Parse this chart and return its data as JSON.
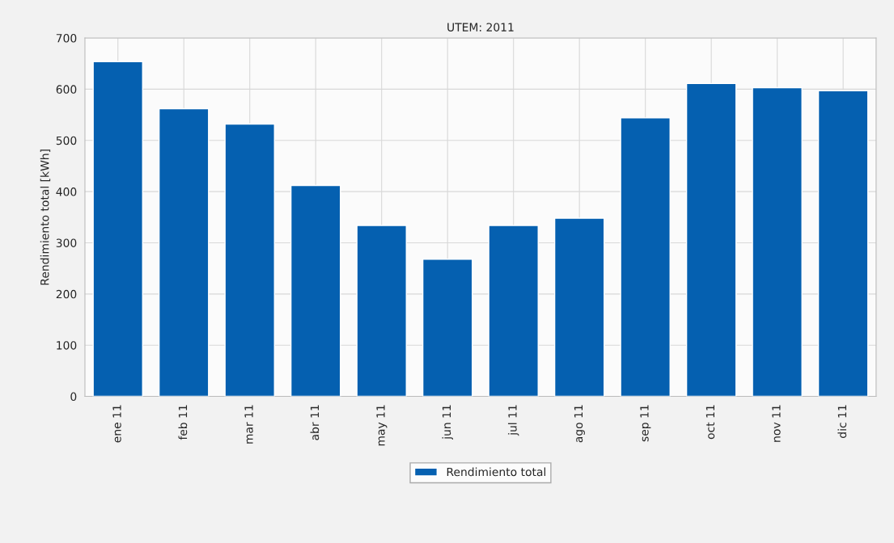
{
  "chart_data": {
    "type": "bar",
    "title": "UTEM: 2011",
    "ylabel": "Rendimiento total [kWh]",
    "categories": [
      "ene 11",
      "feb 11",
      "mar 11",
      "abr 11",
      "may 11",
      "jun 11",
      "jul 11",
      "ago 11",
      "sep 11",
      "oct 11",
      "nov 11",
      "dic 11"
    ],
    "series": [
      {
        "name": "Rendimiento total",
        "color": "#0560b0",
        "values": [
          654,
          562,
          532,
          412,
          334,
          268,
          334,
          348,
          544,
          611,
          603,
          597
        ]
      }
    ],
    "ylim": [
      0,
      700
    ],
    "yticks": [
      0,
      100,
      200,
      300,
      400,
      500,
      600,
      700
    ],
    "grid": true,
    "legend": "bottom"
  }
}
